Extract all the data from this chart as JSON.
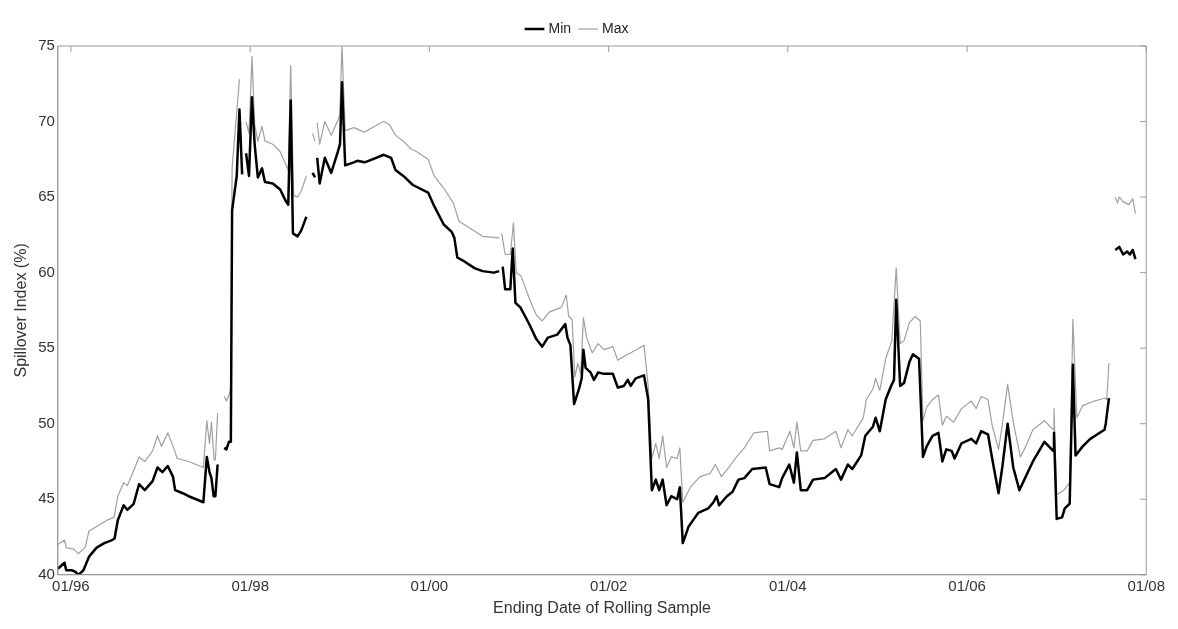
{
  "chart_data": {
    "type": "line",
    "xlabel": "Ending Date of Rolling Sample",
    "ylabel": "Spillover Index (%)",
    "xlim": [
      "1995-11-09",
      "2008-01-01"
    ],
    "xticks": [
      {
        "value": "1996-01-01",
        "label": "01/96"
      },
      {
        "value": "1998-01-01",
        "label": "01/98"
      },
      {
        "value": "2000-01-01",
        "label": "01/00"
      },
      {
        "value": "2002-01-01",
        "label": "01/02"
      },
      {
        "value": "2004-01-01",
        "label": "01/04"
      },
      {
        "value": "2006-01-01",
        "label": "01/06"
      },
      {
        "value": "2008-01-01",
        "label": "01/08"
      }
    ],
    "ylim": [
      40,
      75
    ],
    "yticks": [
      40,
      45,
      50,
      55,
      60,
      65,
      70,
      75
    ],
    "grid": false,
    "legend": "top",
    "marker": "none",
    "line_style": "solid",
    "series": [
      {
        "name": "Min",
        "color": "#000000",
        "x": [
          "1995-11-09",
          "1995-12-06",
          "1995-12-13",
          "1996-01-04",
          "1996-01-19",
          "1996-02-01",
          "1996-02-21",
          "1996-03-15",
          "1996-04-15",
          "1996-05-16",
          "1996-06-17",
          "1996-06-27",
          "1996-07-10",
          "1996-08-03",
          "1996-08-18",
          "1996-09-13",
          "1996-10-05",
          "1996-10-28",
          "1996-11-29",
          "1996-12-19",
          "1997-01-08",
          "1997-01-30",
          "1997-02-20",
          "1997-03-01",
          "1997-04-01",
          "1997-04-25",
          "1997-05-25",
          "1997-06-24",
          "1997-07-08",
          "1997-07-19",
          "1997-07-27",
          "1997-08-05",
          "1997-08-12",
          "1997-08-21",
          "1997-09-04",
          "1997-09-17",
          "1997-09-26",
          "1997-10-06",
          "1997-10-14",
          "1997-10-19",
          "1997-11-07",
          "1997-11-18",
          "1997-11-29",
          "1997-12-08",
          "1997-12-15",
          "1997-12-27",
          "1998-01-08",
          "1998-01-19",
          "1998-02-01",
          "1998-02-18",
          "1998-03-02",
          "1998-04-03",
          "1998-05-03",
          "1998-05-27",
          "1998-06-05",
          "1998-06-15",
          "1998-06-24",
          "1998-07-13",
          "1998-07-28",
          "1998-08-18",
          "1998-08-30",
          "1998-09-12",
          "1998-09-22",
          "1998-09-27",
          "1998-10-01",
          "1998-10-11",
          "1998-11-01",
          "1998-11-27",
          "1998-12-22",
          "1999-01-02",
          "1999-01-10",
          "1999-01-23",
          "1999-02-27",
          "1999-03-13",
          "1999-04-12",
          "1999-05-14",
          "1999-06-29",
          "1999-07-29",
          "1999-08-16",
          "1999-09-17",
          "1999-10-26",
          "1999-12-27",
          "2000-01-21",
          "2000-02-28",
          "2000-04-01",
          "2000-04-12",
          "2000-04-24",
          "2000-05-17",
          "2000-07-03",
          "2000-08-05",
          "2000-09-20",
          "2000-10-12",
          "2000-10-19",
          "2000-10-26",
          "2000-11-05",
          "2000-11-26",
          "2000-12-06",
          "2000-12-17",
          "2001-01-06",
          "2001-02-11",
          "2001-03-12",
          "2001-04-05",
          "2001-04-28",
          "2001-06-06",
          "2001-07-08",
          "2001-07-17",
          "2001-07-29",
          "2001-08-13",
          "2001-09-02",
          "2001-09-13",
          "2001-09-20",
          "2001-09-29",
          "2001-10-19",
          "2001-11-02",
          "2001-11-19",
          "2001-12-13",
          "2002-01-18",
          "2002-02-07",
          "2002-03-04",
          "2002-03-20",
          "2002-04-01",
          "2002-04-21",
          "2002-05-25",
          "2002-06-11",
          "2002-06-26",
          "2002-07-12",
          "2002-07-26",
          "2002-08-09",
          "2002-08-25",
          "2002-09-13",
          "2002-10-07",
          "2002-10-18",
          "2002-10-30",
          "2002-11-23",
          "2003-01-01",
          "2003-02-11",
          "2003-03-04",
          "2003-03-17",
          "2003-03-27",
          "2003-04-28",
          "2003-05-21",
          "2003-06-14",
          "2003-07-08",
          "2003-08-09",
          "2003-10-03",
          "2003-10-19",
          "2003-11-27",
          "2003-12-09",
          "2004-01-07",
          "2004-01-26",
          "2004-02-07",
          "2004-02-23",
          "2004-03-20",
          "2004-04-13",
          "2004-05-30",
          "2004-07-15",
          "2004-08-05",
          "2004-09-02",
          "2004-09-20",
          "2004-10-26",
          "2004-11-12",
          "2004-12-13",
          "2004-12-24",
          "2005-01-10",
          "2005-02-03",
          "2005-02-25",
          "2005-03-09",
          "2005-03-18",
          "2005-04-03",
          "2005-04-19",
          "2005-05-11",
          "2005-05-25",
          "2005-06-19",
          "2005-07-05",
          "2005-07-20",
          "2005-08-13",
          "2005-09-06",
          "2005-09-22",
          "2005-10-08",
          "2005-10-30",
          "2005-11-11",
          "2005-12-09",
          "2006-01-18",
          "2006-02-07",
          "2006-02-27",
          "2006-03-27",
          "2006-04-13",
          "2006-05-09",
          "2006-05-25",
          "2006-06-15",
          "2006-07-08",
          "2006-08-02",
          "2006-08-25",
          "2006-09-26",
          "2006-11-12",
          "2006-12-18",
          "2006-12-21",
          "2007-01-01",
          "2007-01-23",
          "2007-02-03",
          "2007-02-23",
          "2007-03-08",
          "2007-03-19",
          "2007-04-17",
          "2007-05-18",
          "2007-07-05",
          "2007-07-15",
          "2007-07-20",
          "2007-08-02",
          "2007-08-14",
          "2007-08-28",
          "2007-09-13",
          "2007-09-29",
          "2007-10-15",
          "2007-10-26",
          "2007-11-07",
          "2007-11-18"
        ],
        "values": [
          40.4,
          40.8,
          40.3,
          40.3,
          40.2,
          40.0,
          40.3,
          41.2,
          41.8,
          42.1,
          42.3,
          42.4,
          43.6,
          44.6,
          44.3,
          44.7,
          46.0,
          45.6,
          46.2,
          47.1,
          46.8,
          47.2,
          46.5,
          45.6,
          45.4,
          45.2,
          45.0,
          44.8,
          47.8,
          46.8,
          46.4,
          45.2,
          45.2,
          47.3,
          null,
          48.4,
          48.3,
          48.8,
          48.8,
          64.1,
          66.4,
          70.8,
          66.5,
          null,
          67.9,
          66.4,
          71.6,
          68.5,
          66.3,
          66.9,
          66.0,
          65.9,
          65.5,
          64.7,
          64.5,
          71.4,
          62.6,
          62.4,
          62.8,
          63.7,
          null,
          66.6,
          66.3,
          null,
          67.6,
          65.9,
          67.6,
          66.6,
          67.9,
          68.5,
          72.6,
          67.1,
          67.3,
          67.4,
          67.3,
          67.5,
          67.8,
          67.6,
          66.8,
          66.4,
          65.8,
          65.3,
          64.4,
          63.2,
          62.7,
          62.3,
          61.0,
          60.8,
          60.3,
          60.1,
          60.0,
          60.1,
          null,
          60.4,
          58.9,
          58.9,
          61.6,
          58.0,
          57.7,
          56.6,
          55.6,
          55.1,
          55.7,
          55.9,
          56.6,
          55.7,
          55.2,
          51.3,
          52.3,
          53.0,
          54.9,
          53.7,
          53.4,
          52.9,
          53.4,
          53.3,
          53.3,
          52.4,
          52.5,
          52.9,
          52.5,
          53.0,
          53.2,
          51.6,
          45.6,
          46.3,
          45.6,
          46.3,
          44.6,
          45.2,
          45.0,
          45.8,
          42.1,
          43.2,
          44.1,
          44.4,
          44.8,
          45.2,
          44.6,
          45.2,
          45.5,
          46.3,
          46.4,
          47.0,
          47.1,
          46.0,
          45.8,
          46.4,
          47.3,
          46.1,
          48.1,
          45.6,
          45.6,
          46.3,
          46.4,
          47.0,
          46.3,
          47.3,
          47.0,
          47.9,
          49.2,
          49.8,
          50.4,
          49.5,
          51.6,
          52.5,
          52.9,
          58.2,
          52.5,
          52.7,
          54.1,
          54.6,
          54.3,
          47.8,
          48.5,
          49.2,
          49.4,
          47.5,
          48.3,
          48.2,
          47.7,
          48.7,
          49.0,
          48.7,
          49.5,
          49.3,
          47.7,
          45.4,
          47.2,
          50.0,
          47.1,
          45.6,
          46.4,
          47.5,
          48.8,
          48.2,
          49.4,
          43.7,
          43.8,
          44.4,
          44.7,
          53.9,
          47.9,
          48.5,
          49.0,
          49.5,
          49.6,
          50.0,
          51.7,
          null,
          61.5,
          61.7,
          61.2,
          61.4,
          61.2,
          61.5,
          60.9
        ]
      },
      {
        "name": "Max",
        "color": "#a0a0a0",
        "x": [
          "1995-11-09",
          "1995-12-06",
          "1995-12-13",
          "1996-01-12",
          "1996-02-01",
          "1996-02-28",
          "1996-03-15",
          "1996-04-15",
          "1996-05-25",
          "1996-06-25",
          "1996-07-10",
          "1996-08-03",
          "1996-08-18",
          "1996-09-13",
          "1996-10-05",
          "1996-10-28",
          "1996-11-29",
          "1996-12-19",
          "1997-01-04",
          "1997-01-30",
          "1997-02-23",
          "1997-03-09",
          "1997-04-25",
          "1997-06-24",
          "1997-07-08",
          "1997-07-19",
          "1997-07-27",
          "1997-08-07",
          "1997-08-12",
          "1997-08-21",
          "1997-09-04",
          "1997-09-17",
          "1997-09-26",
          "1997-10-06",
          "1997-10-14",
          "1997-10-19",
          "1997-11-18",
          "1997-11-29",
          "1997-12-08",
          "1997-12-15",
          "1997-12-27",
          "1998-01-08",
          "1998-01-19",
          "1998-02-01",
          "1998-02-18",
          "1998-03-02",
          "1998-04-03",
          "1998-05-03",
          "1998-06-05",
          "1998-06-15",
          "1998-06-27",
          "1998-07-13",
          "1998-07-28",
          "1998-08-18",
          "1998-08-30",
          "1998-09-12",
          "1998-09-22",
          "1998-09-27",
          "1998-10-01",
          "1998-10-11",
          "1998-11-01",
          "1998-11-27",
          "1998-12-22",
          "1999-01-01",
          "1999-01-10",
          "1999-01-23",
          "1999-02-27",
          "1999-04-12",
          "1999-05-14",
          "1999-06-29",
          "1999-07-22",
          "1999-08-16",
          "1999-09-17",
          "1999-10-17",
          "1999-11-11",
          "1999-12-27",
          "2000-01-21",
          "2000-02-28",
          "2000-04-08",
          "2000-05-01",
          "2000-06-18",
          "2000-08-05",
          "2000-10-12",
          "2000-10-19",
          "2000-10-22",
          "2000-11-05",
          "2000-11-26",
          "2000-12-09",
          "2000-12-20",
          "2001-01-08",
          "2001-02-11",
          "2001-03-12",
          "2001-04-05",
          "2001-05-05",
          "2001-06-22",
          "2001-07-12",
          "2001-07-22",
          "2001-08-05",
          "2001-08-16",
          "2001-08-28",
          "2001-09-09",
          "2001-09-20",
          "2001-10-03",
          "2001-10-26",
          "2001-11-19",
          "2001-12-13",
          "2002-01-18",
          "2002-02-07",
          "2002-03-08",
          "2002-04-01",
          "2002-04-24",
          "2002-05-25",
          "2002-06-11",
          "2002-06-26",
          "2002-07-12",
          "2002-07-26",
          "2002-08-09",
          "2002-08-25",
          "2002-09-13",
          "2002-10-07",
          "2002-10-18",
          "2002-10-30",
          "2002-11-30",
          "2003-01-08",
          "2003-02-18",
          "2003-03-12",
          "2003-04-05",
          "2003-05-05",
          "2003-06-06",
          "2003-07-08",
          "2003-08-16",
          "2003-10-10",
          "2003-10-19",
          "2003-11-27",
          "2003-12-09",
          "2004-01-10",
          "2004-01-26",
          "2004-02-07",
          "2004-02-23",
          "2004-03-20",
          "2004-04-13",
          "2004-05-30",
          "2004-07-15",
          "2004-08-05",
          "2004-09-02",
          "2004-09-20",
          "2004-11-04",
          "2004-11-16",
          "2004-12-13",
          "2004-12-24",
          "2005-01-10",
          "2005-02-03",
          "2005-02-28",
          "2005-03-18",
          "2005-04-03",
          "2005-04-19",
          "2005-05-11",
          "2005-06-04",
          "2005-06-24",
          "2005-07-05",
          "2005-07-20",
          "2005-08-13",
          "2005-09-06",
          "2005-09-22",
          "2005-10-08",
          "2005-11-07",
          "2005-12-09",
          "2006-01-18",
          "2006-02-07",
          "2006-02-27",
          "2006-03-27",
          "2006-04-13",
          "2006-05-09",
          "2006-05-25",
          "2006-06-15",
          "2006-07-08",
          "2006-08-06",
          "2006-08-25",
          "2006-09-26",
          "2006-11-12",
          "2006-12-18",
          "2006-12-21",
          "2007-01-01",
          "2007-01-30",
          "2007-02-23",
          "2007-03-08",
          "2007-03-24",
          "2007-04-17",
          "2007-06-04",
          "2007-07-17",
          "2007-07-24",
          "2007-08-02",
          "2007-08-14",
          "2007-08-28",
          "2007-09-06",
          "2007-09-13",
          "2007-09-29",
          "2007-10-22",
          "2007-11-07",
          "2007-11-18"
        ],
        "values": [
          42.0,
          42.3,
          41.8,
          41.7,
          41.4,
          41.8,
          42.9,
          43.2,
          43.6,
          43.8,
          45.2,
          46.1,
          45.9,
          46.9,
          47.8,
          47.5,
          48.2,
          49.2,
          48.5,
          49.4,
          48.4,
          47.7,
          47.5,
          47.1,
          50.2,
          48.7,
          50.1,
          47.6,
          47.6,
          50.7,
          null,
          51.8,
          51.5,
          51.9,
          52.3,
          66.9,
          72.8,
          null,
          null,
          70.0,
          69.2,
          74.3,
          69.8,
          68.7,
          69.7,
          68.7,
          68.5,
          68.0,
          66.8,
          73.7,
          65.1,
          65.0,
          65.4,
          66.4,
          null,
          69.2,
          68.7,
          null,
          69.9,
          68.5,
          70.0,
          69.1,
          70.0,
          70.4,
          75.0,
          69.4,
          69.6,
          69.3,
          69.6,
          70.0,
          69.8,
          69.1,
          68.7,
          68.2,
          68.0,
          67.5,
          66.4,
          65.6,
          64.6,
          63.4,
          62.9,
          62.4,
          62.3,
          null,
          62.6,
          61.2,
          61.2,
          63.3,
          60.0,
          59.8,
          58.3,
          57.2,
          56.8,
          57.4,
          57.7,
          58.5,
          57.1,
          56.9,
          53.1,
          54.0,
          53.3,
          57.0,
          55.7,
          54.7,
          55.3,
          54.9,
          55.1,
          54.2,
          54.5,
          54.7,
          54.9,
          55.2,
          52.5,
          47.7,
          48.7,
          47.7,
          49.2,
          47.1,
          47.8,
          47.7,
          48.4,
          44.8,
          45.8,
          46.5,
          46.7,
          47.3,
          46.5,
          47.1,
          47.8,
          48.4,
          49.4,
          49.5,
          48.2,
          48.4,
          48.3,
          49.5,
          48.4,
          50.1,
          48.2,
          48.2,
          48.9,
          49.0,
          49.5,
          48.4,
          49.6,
          49.2,
          50.4,
          51.6,
          52.3,
          53.0,
          52.2,
          54.3,
          55.5,
          60.3,
          55.3,
          55.5,
          56.7,
          57.1,
          56.8,
          50.2,
          51.1,
          51.6,
          51.9,
          49.9,
          50.5,
          50.1,
          51.0,
          51.5,
          51.0,
          51.8,
          51.6,
          49.9,
          48.3,
          50.0,
          52.6,
          50.1,
          47.8,
          48.4,
          49.6,
          50.2,
          49.6,
          51.0,
          45.3,
          45.6,
          46.1,
          56.9,
          50.4,
          51.2,
          51.5,
          51.7,
          51.6,
          54.0,
          null,
          65.0,
          64.6,
          65.0,
          64.7,
          64.5,
          64.9,
          63.9
        ]
      }
    ]
  }
}
